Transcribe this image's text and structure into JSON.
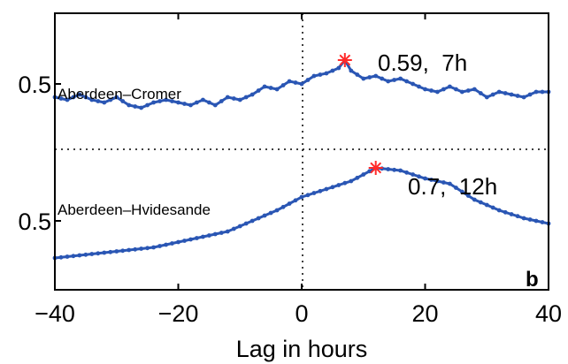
{
  "chart_data": {
    "type": "line",
    "xlabel": "Lag in hours",
    "xlim": [
      -40,
      40
    ],
    "xticks": [
      -40,
      -20,
      0,
      20,
      40
    ],
    "xtick_labels": [
      "−40",
      "−20",
      "0",
      "20",
      "40"
    ],
    "ytick_labels": [
      "0.5",
      "0.5"
    ],
    "panel_label": "b",
    "grid": false,
    "reference_lines": [
      "vertical dotted line at lag 0",
      "horizontal dotted line separating the two stacked curves"
    ],
    "colors": {
      "series": "#2a56b4",
      "marker": "#ff2a2a"
    },
    "series": [
      {
        "name": "Aberdeen–Cromer",
        "baseline_tick": "0.5",
        "x": [
          -40,
          -38,
          -36,
          -34,
          -32,
          -30,
          -28,
          -26,
          -24,
          -22,
          -20,
          -18,
          -16,
          -14,
          -12,
          -10,
          -8,
          -6,
          -4,
          -2,
          0,
          2,
          4,
          6,
          7,
          8,
          10,
          12,
          14,
          16,
          18,
          20,
          22,
          24,
          26,
          28,
          30,
          32,
          34,
          36,
          38,
          40
        ],
        "y": [
          0.45,
          0.44,
          0.46,
          0.44,
          0.43,
          0.45,
          0.42,
          0.41,
          0.43,
          0.44,
          0.43,
          0.42,
          0.44,
          0.42,
          0.45,
          0.44,
          0.46,
          0.49,
          0.48,
          0.51,
          0.5,
          0.53,
          0.54,
          0.56,
          0.59,
          0.55,
          0.52,
          0.53,
          0.51,
          0.52,
          0.5,
          0.48,
          0.47,
          0.49,
          0.47,
          0.48,
          0.45,
          0.47,
          0.46,
          0.45,
          0.47,
          0.47
        ],
        "peak": {
          "x": 7,
          "y": 0.59,
          "label": "0.59,  7h"
        }
      },
      {
        "name": "Aberdeen–Hvidesande",
        "baseline_tick": "0.5",
        "x": [
          -40,
          -36,
          -32,
          -28,
          -24,
          -20,
          -16,
          -12,
          -8,
          -4,
          0,
          4,
          8,
          12,
          16,
          20,
          24,
          28,
          32,
          36,
          40
        ],
        "y": [
          0.36,
          0.37,
          0.38,
          0.39,
          0.4,
          0.42,
          0.44,
          0.46,
          0.5,
          0.54,
          0.59,
          0.62,
          0.65,
          0.7,
          0.69,
          0.66,
          0.64,
          0.58,
          0.54,
          0.51,
          0.49
        ],
        "peak": {
          "x": 12,
          "y": 0.7,
          "label": "0.7,  12h"
        }
      }
    ]
  }
}
